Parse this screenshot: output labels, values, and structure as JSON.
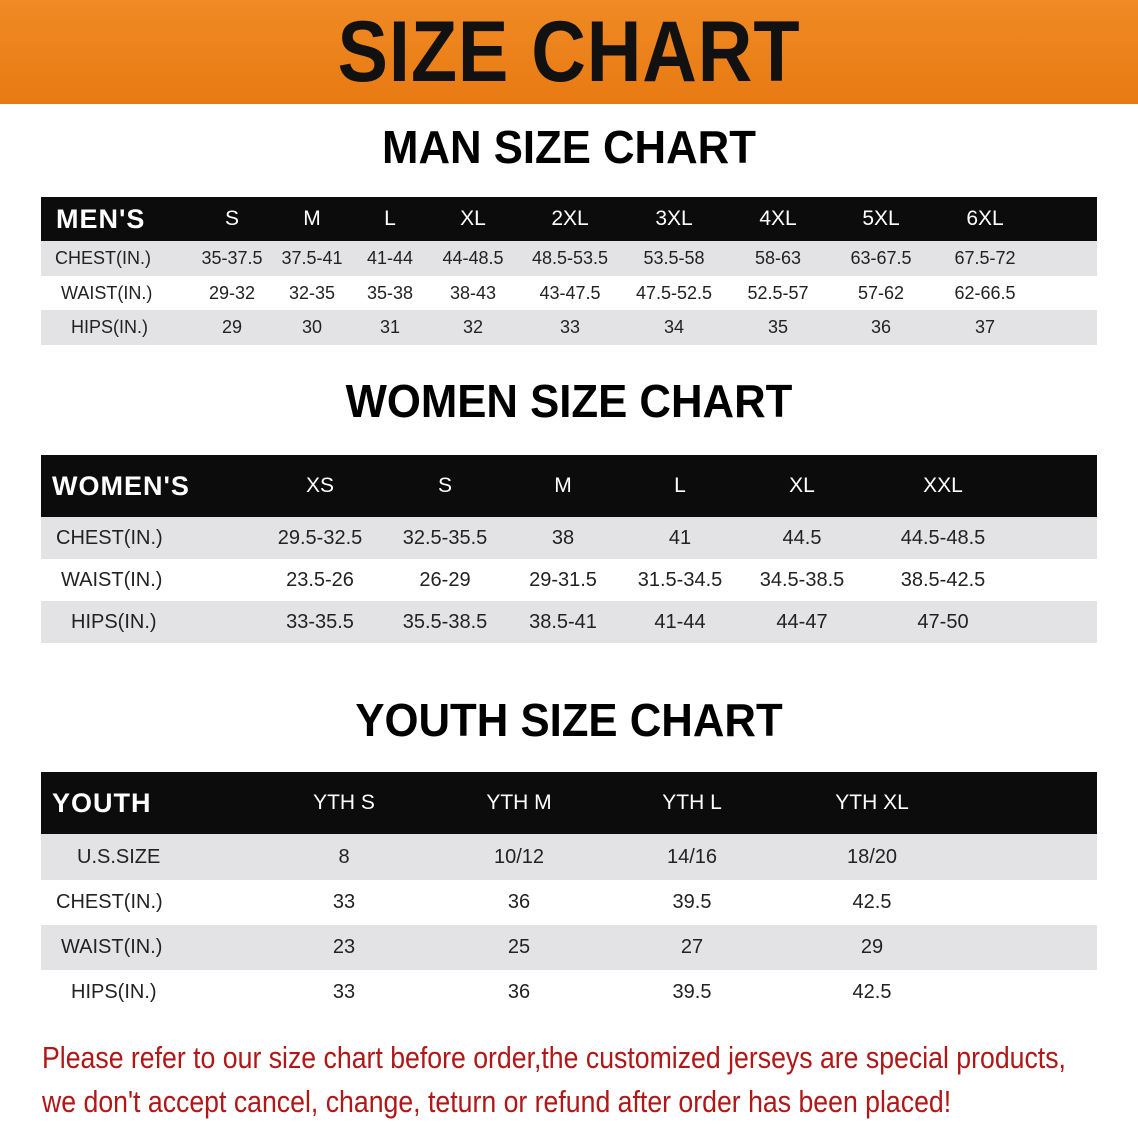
{
  "banner": {
    "title": "SIZE CHART",
    "color": "#ec8019"
  },
  "men": {
    "title": "MAN SIZE CHART",
    "header": {
      "label": "MEN'S",
      "sizes": [
        "S",
        "M",
        "L",
        "XL",
        "2XL",
        "3XL",
        "4XL",
        "5XL",
        "6XL"
      ]
    },
    "rows": [
      {
        "label": "CHEST(IN.)",
        "values": [
          "35-37.5",
          "37.5-41",
          "41-44",
          "44-48.5",
          "48.5-53.5",
          "53.5-58",
          "58-63",
          "63-67.5",
          "67.5-72"
        ]
      },
      {
        "label": "WAIST(IN.)",
        "values": [
          "29-32",
          "32-35",
          "35-38",
          "38-43",
          "43-47.5",
          "47.5-52.5",
          "52.5-57",
          "57-62",
          "62-66.5"
        ]
      },
      {
        "label": "HIPS(IN.)",
        "values": [
          "29",
          "30",
          "31",
          "32",
          "33",
          "34",
          "35",
          "36",
          "37"
        ]
      }
    ]
  },
  "women": {
    "title": "WOMEN SIZE CHART",
    "header": {
      "label": "WOMEN'S",
      "sizes": [
        "XS",
        "S",
        "M",
        "L",
        "XL",
        "XXL"
      ]
    },
    "rows": [
      {
        "label": "CHEST(IN.)",
        "values": [
          "29.5-32.5",
          "32.5-35.5",
          "38",
          "41",
          "44.5",
          "44.5-48.5"
        ]
      },
      {
        "label": "WAIST(IN.)",
        "values": [
          "23.5-26",
          "26-29",
          "29-31.5",
          "31.5-34.5",
          "34.5-38.5",
          "38.5-42.5"
        ]
      },
      {
        "label": "HIPS(IN.)",
        "values": [
          "33-35.5",
          "35.5-38.5",
          "38.5-41",
          "41-44",
          "44-47",
          "47-50"
        ]
      }
    ]
  },
  "youth": {
    "title": "YOUTH SIZE CHART",
    "header": {
      "label": "YOUTH",
      "sizes": [
        "YTH S",
        "YTH M",
        "YTH L",
        "YTH XL"
      ]
    },
    "rows": [
      {
        "label": "U.S.SIZE",
        "values": [
          "8",
          "10/12",
          "14/16",
          "18/20"
        ]
      },
      {
        "label": "CHEST(IN.)",
        "values": [
          "33",
          "36",
          "39.5",
          "42.5"
        ]
      },
      {
        "label": "WAIST(IN.)",
        "values": [
          "23",
          "25",
          "27",
          "29"
        ]
      },
      {
        "label": "HIPS(IN.)",
        "values": [
          "33",
          "36",
          "39.5",
          "42.5"
        ]
      }
    ]
  },
  "notice": {
    "line1": "Please refer to our size chart before order,the customized jerseys are special products,",
    "line2": "we don't accept cancel, change, teturn or refund after order has been placed!",
    "color": "#b01818"
  }
}
